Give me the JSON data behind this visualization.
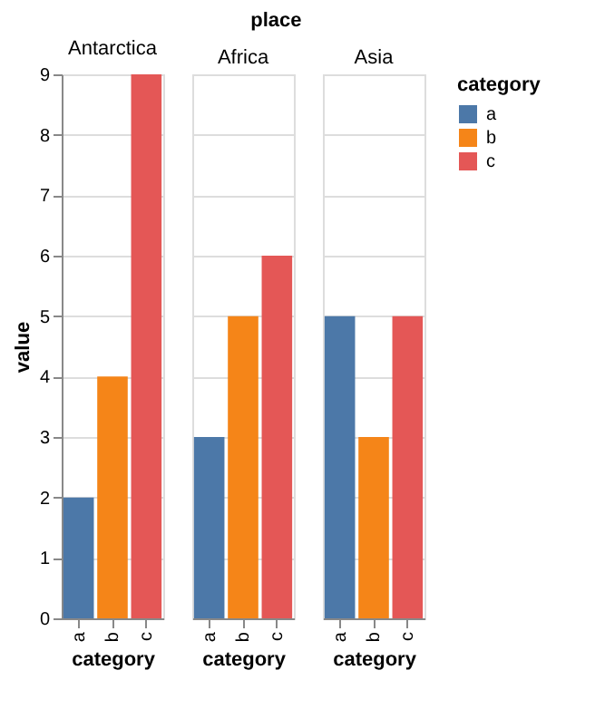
{
  "chart_data": [
    {
      "type": "bar",
      "title": "Antarctica",
      "annotations": [
        "place"
      ],
      "xlabel": "category",
      "ylabel": "value",
      "categories": [
        "a",
        "b",
        "c"
      ],
      "series": [
        {
          "color": "#4c78a8",
          "values": [
            2,
            null,
            null
          ]
        },
        {
          "color": "#f58518",
          "values": [
            null,
            4,
            null
          ]
        },
        {
          "color": "#e45756",
          "values": [
            null,
            null,
            9
          ]
        }
      ],
      "ylim": [
        0,
        9
      ],
      "yticks": [
        0,
        1,
        2,
        3,
        4,
        5,
        6,
        7,
        8,
        9
      ],
      "grid": "y"
    },
    {
      "type": "bar",
      "title": "Africa",
      "xlabel": "category",
      "categories": [
        "a",
        "b",
        "c"
      ],
      "series": [
        {
          "color": "#4c78a8",
          "values": [
            3,
            null,
            null
          ]
        },
        {
          "color": "#f58518",
          "values": [
            null,
            5,
            null
          ]
        },
        {
          "color": "#e45756",
          "values": [
            null,
            null,
            6
          ]
        }
      ],
      "ylim": [
        0,
        9
      ],
      "yticks": [
        0,
        1,
        2,
        3,
        4,
        5,
        6,
        7,
        8,
        9
      ],
      "grid": "y",
      "tick_labels": "x"
    },
    {
      "type": "bar",
      "title": "Asia",
      "xlabel": "category",
      "categories": [
        "a",
        "b",
        "c"
      ],
      "series": [
        {
          "name": "a",
          "color": "#4c78a8",
          "values": [
            5,
            null,
            null
          ]
        },
        {
          "name": "b",
          "color": "#f58518",
          "values": [
            null,
            3,
            null
          ]
        },
        {
          "name": "c",
          "color": "#e45756",
          "values": [
            null,
            null,
            5
          ]
        }
      ],
      "ylim": [
        0,
        9
      ],
      "yticks": [
        0,
        1,
        2,
        3,
        4,
        5,
        6,
        7,
        8,
        9
      ],
      "grid": "y",
      "tick_labels": "x",
      "legend": "right",
      "legend_title": "category"
    }
  ]
}
